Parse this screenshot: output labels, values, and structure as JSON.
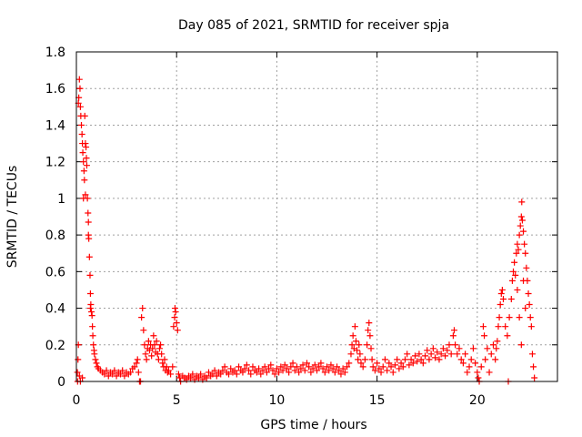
{
  "chart_data": {
    "type": "scatter",
    "title": "Day 085 of 2021, SRMTID for receiver spja",
    "xlabel": "GPS time / hours",
    "ylabel": "SRMTID / TECUs",
    "xlim": [
      0,
      24
    ],
    "ylim": [
      0,
      1.8
    ],
    "x_ticks": [
      0,
      5,
      10,
      15,
      20
    ],
    "x_tick_labels": [
      "0",
      "5",
      "10",
      "15",
      "20"
    ],
    "y_ticks": [
      0,
      0.2,
      0.4,
      0.6,
      0.8,
      1.0,
      1.2,
      1.4,
      1.6,
      1.8
    ],
    "y_tick_labels": [
      "0",
      "0.2",
      "0.4",
      "0.6",
      "0.8",
      "1",
      "1.2",
      "1.4",
      "1.6",
      "1.8"
    ],
    "grid": true,
    "marker": "+",
    "series": [
      {
        "name": "SRMTID",
        "color": "#ff0000",
        "points": [
          [
            0.05,
            0.05
          ],
          [
            0.1,
            1.52
          ],
          [
            0.12,
            1.55
          ],
          [
            0.15,
            1.65
          ],
          [
            0.18,
            1.6
          ],
          [
            0.2,
            1.5
          ],
          [
            0.22,
            1.45
          ],
          [
            0.25,
            1.4
          ],
          [
            0.28,
            1.35
          ],
          [
            0.3,
            1.3
          ],
          [
            0.32,
            1.25
          ],
          [
            0.35,
            1.2
          ],
          [
            0.38,
            1.15
          ],
          [
            0.4,
            1.1
          ],
          [
            0.42,
            1.45
          ],
          [
            0.45,
            1.3
          ],
          [
            0.48,
            1.28
          ],
          [
            0.5,
            1.22
          ],
          [
            0.52,
            1.18
          ],
          [
            0.55,
            1.0
          ],
          [
            0.58,
            0.92
          ],
          [
            0.6,
            0.87
          ],
          [
            0.62,
            0.78
          ],
          [
            0.65,
            0.68
          ],
          [
            0.68,
            0.58
          ],
          [
            0.7,
            0.48
          ],
          [
            0.72,
            0.42
          ],
          [
            0.75,
            0.38
          ],
          [
            0.78,
            0.36
          ],
          [
            0.8,
            0.3
          ],
          [
            0.82,
            0.25
          ],
          [
            0.85,
            0.2
          ],
          [
            0.88,
            0.17
          ],
          [
            0.9,
            0.15
          ],
          [
            0.95,
            0.12
          ],
          [
            1.0,
            0.1
          ],
          [
            1.05,
            0.08
          ],
          [
            1.1,
            0.07
          ],
          [
            1.2,
            0.06
          ],
          [
            1.3,
            0.05
          ],
          [
            0.08,
            0.12
          ],
          [
            0.1,
            0.2
          ],
          [
            0.06,
            0.0
          ],
          [
            0.2,
            0.0
          ],
          [
            0.3,
            0.02
          ],
          [
            0.15,
            0.03
          ],
          [
            0.35,
            1.0
          ],
          [
            0.45,
            1.02
          ],
          [
            0.6,
            0.8
          ],
          [
            0.7,
            0.4
          ],
          [
            1.4,
            0.04
          ],
          [
            1.5,
            0.06
          ],
          [
            1.6,
            0.03
          ],
          [
            1.7,
            0.05
          ],
          [
            1.8,
            0.04
          ],
          [
            1.9,
            0.06
          ],
          [
            2.0,
            0.03
          ],
          [
            2.1,
            0.05
          ],
          [
            2.2,
            0.04
          ],
          [
            2.3,
            0.06
          ],
          [
            2.4,
            0.03
          ],
          [
            2.5,
            0.05
          ],
          [
            2.6,
            0.04
          ],
          [
            2.7,
            0.05
          ],
          [
            2.8,
            0.07
          ],
          [
            2.9,
            0.08
          ],
          [
            3.0,
            0.1
          ],
          [
            3.05,
            0.12
          ],
          [
            3.1,
            0.05
          ],
          [
            3.15,
            0.0
          ],
          [
            3.2,
            0.0
          ],
          [
            3.25,
            0.35
          ],
          [
            3.3,
            0.4
          ],
          [
            3.35,
            0.28
          ],
          [
            3.4,
            0.2
          ],
          [
            3.45,
            0.15
          ],
          [
            3.5,
            0.12
          ],
          [
            3.55,
            0.18
          ],
          [
            3.6,
            0.22
          ],
          [
            3.65,
            0.17
          ],
          [
            3.7,
            0.2
          ],
          [
            3.75,
            0.14
          ],
          [
            3.8,
            0.18
          ],
          [
            3.85,
            0.25
          ],
          [
            3.9,
            0.2
          ],
          [
            3.95,
            0.16
          ],
          [
            4.0,
            0.22
          ],
          [
            4.05,
            0.15
          ],
          [
            4.1,
            0.12
          ],
          [
            4.15,
            0.18
          ],
          [
            4.2,
            0.2
          ],
          [
            4.25,
            0.15
          ],
          [
            4.3,
            0.1
          ],
          [
            4.35,
            0.08
          ],
          [
            4.4,
            0.12
          ],
          [
            4.45,
            0.06
          ],
          [
            4.5,
            0.08
          ],
          [
            4.55,
            0.05
          ],
          [
            4.6,
            0.06
          ],
          [
            4.7,
            0.04
          ],
          [
            4.8,
            0.08
          ],
          [
            4.85,
            0.3
          ],
          [
            4.9,
            0.35
          ],
          [
            4.92,
            0.4
          ],
          [
            4.95,
            0.38
          ],
          [
            5.0,
            0.32
          ],
          [
            5.05,
            0.28
          ],
          [
            5.1,
            0.04
          ],
          [
            5.15,
            0.02
          ],
          [
            5.2,
            0.0
          ],
          [
            5.3,
            0.03
          ],
          [
            5.4,
            0.02
          ],
          [
            5.5,
            0.01
          ],
          [
            5.6,
            0.03
          ],
          [
            5.7,
            0.02
          ],
          [
            5.8,
            0.04
          ],
          [
            5.9,
            0.01
          ],
          [
            6.0,
            0.03
          ],
          [
            6.1,
            0.02
          ],
          [
            6.2,
            0.04
          ],
          [
            6.3,
            0.01
          ],
          [
            6.4,
            0.03
          ],
          [
            6.5,
            0.02
          ],
          [
            6.6,
            0.05
          ],
          [
            6.7,
            0.03
          ],
          [
            6.8,
            0.04
          ],
          [
            6.9,
            0.06
          ],
          [
            7.0,
            0.03
          ],
          [
            7.1,
            0.05
          ],
          [
            7.2,
            0.04
          ],
          [
            7.3,
            0.06
          ],
          [
            7.4,
            0.08
          ],
          [
            7.5,
            0.05
          ],
          [
            7.6,
            0.04
          ],
          [
            7.7,
            0.07
          ],
          [
            7.8,
            0.05
          ],
          [
            7.9,
            0.06
          ],
          [
            8.0,
            0.04
          ],
          [
            8.1,
            0.08
          ],
          [
            8.2,
            0.06
          ],
          [
            8.3,
            0.05
          ],
          [
            8.4,
            0.07
          ],
          [
            8.5,
            0.09
          ],
          [
            8.6,
            0.06
          ],
          [
            8.7,
            0.04
          ],
          [
            8.8,
            0.08
          ],
          [
            8.9,
            0.06
          ],
          [
            9.0,
            0.05
          ],
          [
            9.1,
            0.07
          ],
          [
            9.2,
            0.04
          ],
          [
            9.3,
            0.06
          ],
          [
            9.4,
            0.08
          ],
          [
            9.5,
            0.05
          ],
          [
            9.6,
            0.07
          ],
          [
            9.7,
            0.09
          ],
          [
            9.8,
            0.06
          ],
          [
            9.9,
            0.04
          ],
          [
            10.0,
            0.07
          ],
          [
            10.1,
            0.05
          ],
          [
            10.2,
            0.08
          ],
          [
            10.3,
            0.06
          ],
          [
            10.4,
            0.09
          ],
          [
            10.5,
            0.07
          ],
          [
            10.6,
            0.05
          ],
          [
            10.7,
            0.08
          ],
          [
            10.8,
            0.1
          ],
          [
            10.9,
            0.06
          ],
          [
            11.0,
            0.08
          ],
          [
            11.1,
            0.05
          ],
          [
            11.2,
            0.07
          ],
          [
            11.3,
            0.09
          ],
          [
            11.4,
            0.06
          ],
          [
            11.5,
            0.1
          ],
          [
            11.6,
            0.08
          ],
          [
            11.7,
            0.05
          ],
          [
            11.8,
            0.07
          ],
          [
            11.9,
            0.09
          ],
          [
            12.0,
            0.06
          ],
          [
            12.1,
            0.08
          ],
          [
            12.2,
            0.1
          ],
          [
            12.3,
            0.07
          ],
          [
            12.4,
            0.05
          ],
          [
            12.5,
            0.08
          ],
          [
            12.6,
            0.06
          ],
          [
            12.7,
            0.09
          ],
          [
            12.8,
            0.07
          ],
          [
            12.9,
            0.05
          ],
          [
            13.0,
            0.08
          ],
          [
            13.1,
            0.06
          ],
          [
            13.2,
            0.04
          ],
          [
            13.3,
            0.07
          ],
          [
            13.4,
            0.05
          ],
          [
            13.5,
            0.08
          ],
          [
            13.6,
            0.1
          ],
          [
            13.7,
            0.15
          ],
          [
            13.75,
            0.2
          ],
          [
            13.8,
            0.25
          ],
          [
            13.85,
            0.18
          ],
          [
            13.9,
            0.3
          ],
          [
            13.95,
            0.22
          ],
          [
            14.0,
            0.17
          ],
          [
            14.05,
            0.12
          ],
          [
            14.1,
            0.2
          ],
          [
            14.15,
            0.15
          ],
          [
            14.2,
            0.1
          ],
          [
            14.3,
            0.08
          ],
          [
            14.4,
            0.12
          ],
          [
            14.5,
            0.2
          ],
          [
            14.55,
            0.28
          ],
          [
            14.6,
            0.32
          ],
          [
            14.65,
            0.25
          ],
          [
            14.7,
            0.18
          ],
          [
            14.75,
            0.12
          ],
          [
            14.8,
            0.08
          ],
          [
            14.9,
            0.06
          ],
          [
            15.0,
            0.1
          ],
          [
            15.1,
            0.07
          ],
          [
            15.2,
            0.05
          ],
          [
            15.3,
            0.08
          ],
          [
            15.4,
            0.12
          ],
          [
            15.5,
            0.06
          ],
          [
            15.6,
            0.1
          ],
          [
            15.7,
            0.08
          ],
          [
            15.8,
            0.05
          ],
          [
            15.9,
            0.09
          ],
          [
            16.0,
            0.12
          ],
          [
            16.1,
            0.07
          ],
          [
            16.2,
            0.1
          ],
          [
            16.3,
            0.08
          ],
          [
            16.4,
            0.12
          ],
          [
            16.5,
            0.15
          ],
          [
            16.6,
            0.09
          ],
          [
            16.7,
            0.12
          ],
          [
            16.8,
            0.1
          ],
          [
            16.9,
            0.14
          ],
          [
            17.0,
            0.11
          ],
          [
            17.1,
            0.15
          ],
          [
            17.2,
            0.12
          ],
          [
            17.3,
            0.1
          ],
          [
            17.4,
            0.14
          ],
          [
            17.5,
            0.17
          ],
          [
            17.6,
            0.12
          ],
          [
            17.7,
            0.15
          ],
          [
            17.8,
            0.18
          ],
          [
            17.9,
            0.13
          ],
          [
            18.0,
            0.16
          ],
          [
            18.1,
            0.12
          ],
          [
            18.2,
            0.15
          ],
          [
            18.3,
            0.18
          ],
          [
            18.4,
            0.14
          ],
          [
            18.5,
            0.17
          ],
          [
            18.6,
            0.2
          ],
          [
            18.7,
            0.15
          ],
          [
            18.8,
            0.25
          ],
          [
            18.85,
            0.28
          ],
          [
            18.9,
            0.2
          ],
          [
            19.0,
            0.15
          ],
          [
            19.1,
            0.18
          ],
          [
            19.2,
            0.12
          ],
          [
            19.3,
            0.1
          ],
          [
            19.4,
            0.15
          ],
          [
            19.5,
            0.05
          ],
          [
            19.6,
            0.08
          ],
          [
            19.7,
            0.12
          ],
          [
            19.8,
            0.18
          ],
          [
            19.9,
            0.1
          ],
          [
            20.0,
            0.05
          ],
          [
            20.05,
            0.02
          ],
          [
            20.1,
            0.0
          ],
          [
            20.2,
            0.08
          ],
          [
            20.3,
            0.3
          ],
          [
            20.35,
            0.25
          ],
          [
            20.4,
            0.12
          ],
          [
            20.5,
            0.18
          ],
          [
            20.6,
            0.05
          ],
          [
            20.7,
            0.15
          ],
          [
            20.8,
            0.2
          ],
          [
            20.9,
            0.12
          ],
          [
            20.95,
            0.18
          ],
          [
            21.0,
            0.22
          ],
          [
            21.05,
            0.3
          ],
          [
            21.1,
            0.35
          ],
          [
            21.15,
            0.42
          ],
          [
            21.2,
            0.48
          ],
          [
            21.25,
            0.5
          ],
          [
            21.3,
            0.45
          ],
          [
            21.4,
            0.3
          ],
          [
            21.5,
            0.25
          ],
          [
            21.55,
            0.0
          ],
          [
            21.6,
            0.35
          ],
          [
            21.7,
            0.45
          ],
          [
            21.75,
            0.55
          ],
          [
            21.8,
            0.6
          ],
          [
            21.85,
            0.65
          ],
          [
            21.9,
            0.58
          ],
          [
            21.95,
            0.7
          ],
          [
            22.0,
            0.75
          ],
          [
            22.05,
            0.72
          ],
          [
            22.1,
            0.8
          ],
          [
            22.15,
            0.85
          ],
          [
            22.2,
            0.9
          ],
          [
            22.22,
            0.98
          ],
          [
            22.25,
            0.88
          ],
          [
            22.3,
            0.82
          ],
          [
            22.35,
            0.75
          ],
          [
            22.4,
            0.7
          ],
          [
            22.45,
            0.62
          ],
          [
            22.5,
            0.55
          ],
          [
            22.55,
            0.48
          ],
          [
            22.6,
            0.42
          ],
          [
            22.65,
            0.35
          ],
          [
            22.7,
            0.3
          ],
          [
            22.75,
            0.15
          ],
          [
            22.8,
            0.08
          ],
          [
            22.85,
            0.02
          ],
          [
            22.0,
            0.5
          ],
          [
            22.1,
            0.35
          ],
          [
            22.2,
            0.2
          ],
          [
            22.3,
            0.55
          ],
          [
            22.4,
            0.4
          ]
        ]
      }
    ]
  }
}
